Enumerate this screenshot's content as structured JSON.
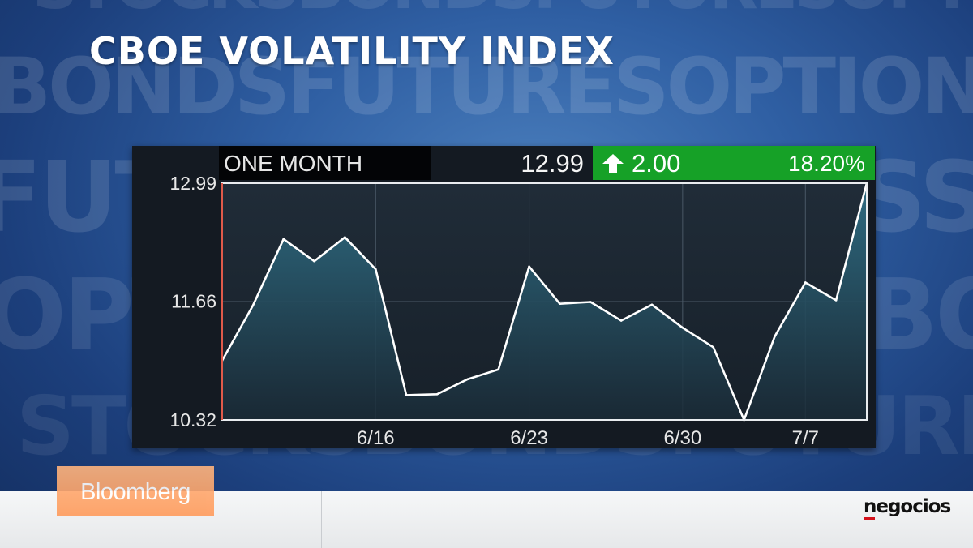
{
  "headline": "CBOE VOLATILITY INDEX",
  "background_words": [
    "STOCKS",
    "BONDS",
    "FUTURES",
    "OPTIONS"
  ],
  "header": {
    "period": "ONE MONTH",
    "last": "12.99",
    "change": "2.00",
    "change_pct": "18.20%",
    "change_direction": "up",
    "change_color": "#16a127"
  },
  "chart_data": {
    "type": "area",
    "title": "",
    "xlabel": "",
    "ylabel": "",
    "grid": true,
    "ylim": [
      10.32,
      12.99
    ],
    "y_ticks": [
      "12.99",
      "11.66",
      "10.32"
    ],
    "x_ticks": [
      "6/16",
      "6/23",
      "6/30",
      "7/7"
    ],
    "x_tick_positions": [
      5,
      10,
      15,
      19
    ],
    "line_color": "#ffffff",
    "fill_color": "#2f6f86",
    "values": [
      10.99,
      11.61,
      12.36,
      12.11,
      12.38,
      12.02,
      10.6,
      10.61,
      10.78,
      10.89,
      12.05,
      11.63,
      11.65,
      11.44,
      11.62,
      11.36,
      11.14,
      10.32,
      11.26,
      11.87,
      11.67,
      12.99
    ]
  },
  "branding": {
    "broadcaster": "Bloomberg",
    "publisher": "negocios",
    "broadcaster_color": "#ff9b5c",
    "publisher_accent": "#d3111b"
  }
}
